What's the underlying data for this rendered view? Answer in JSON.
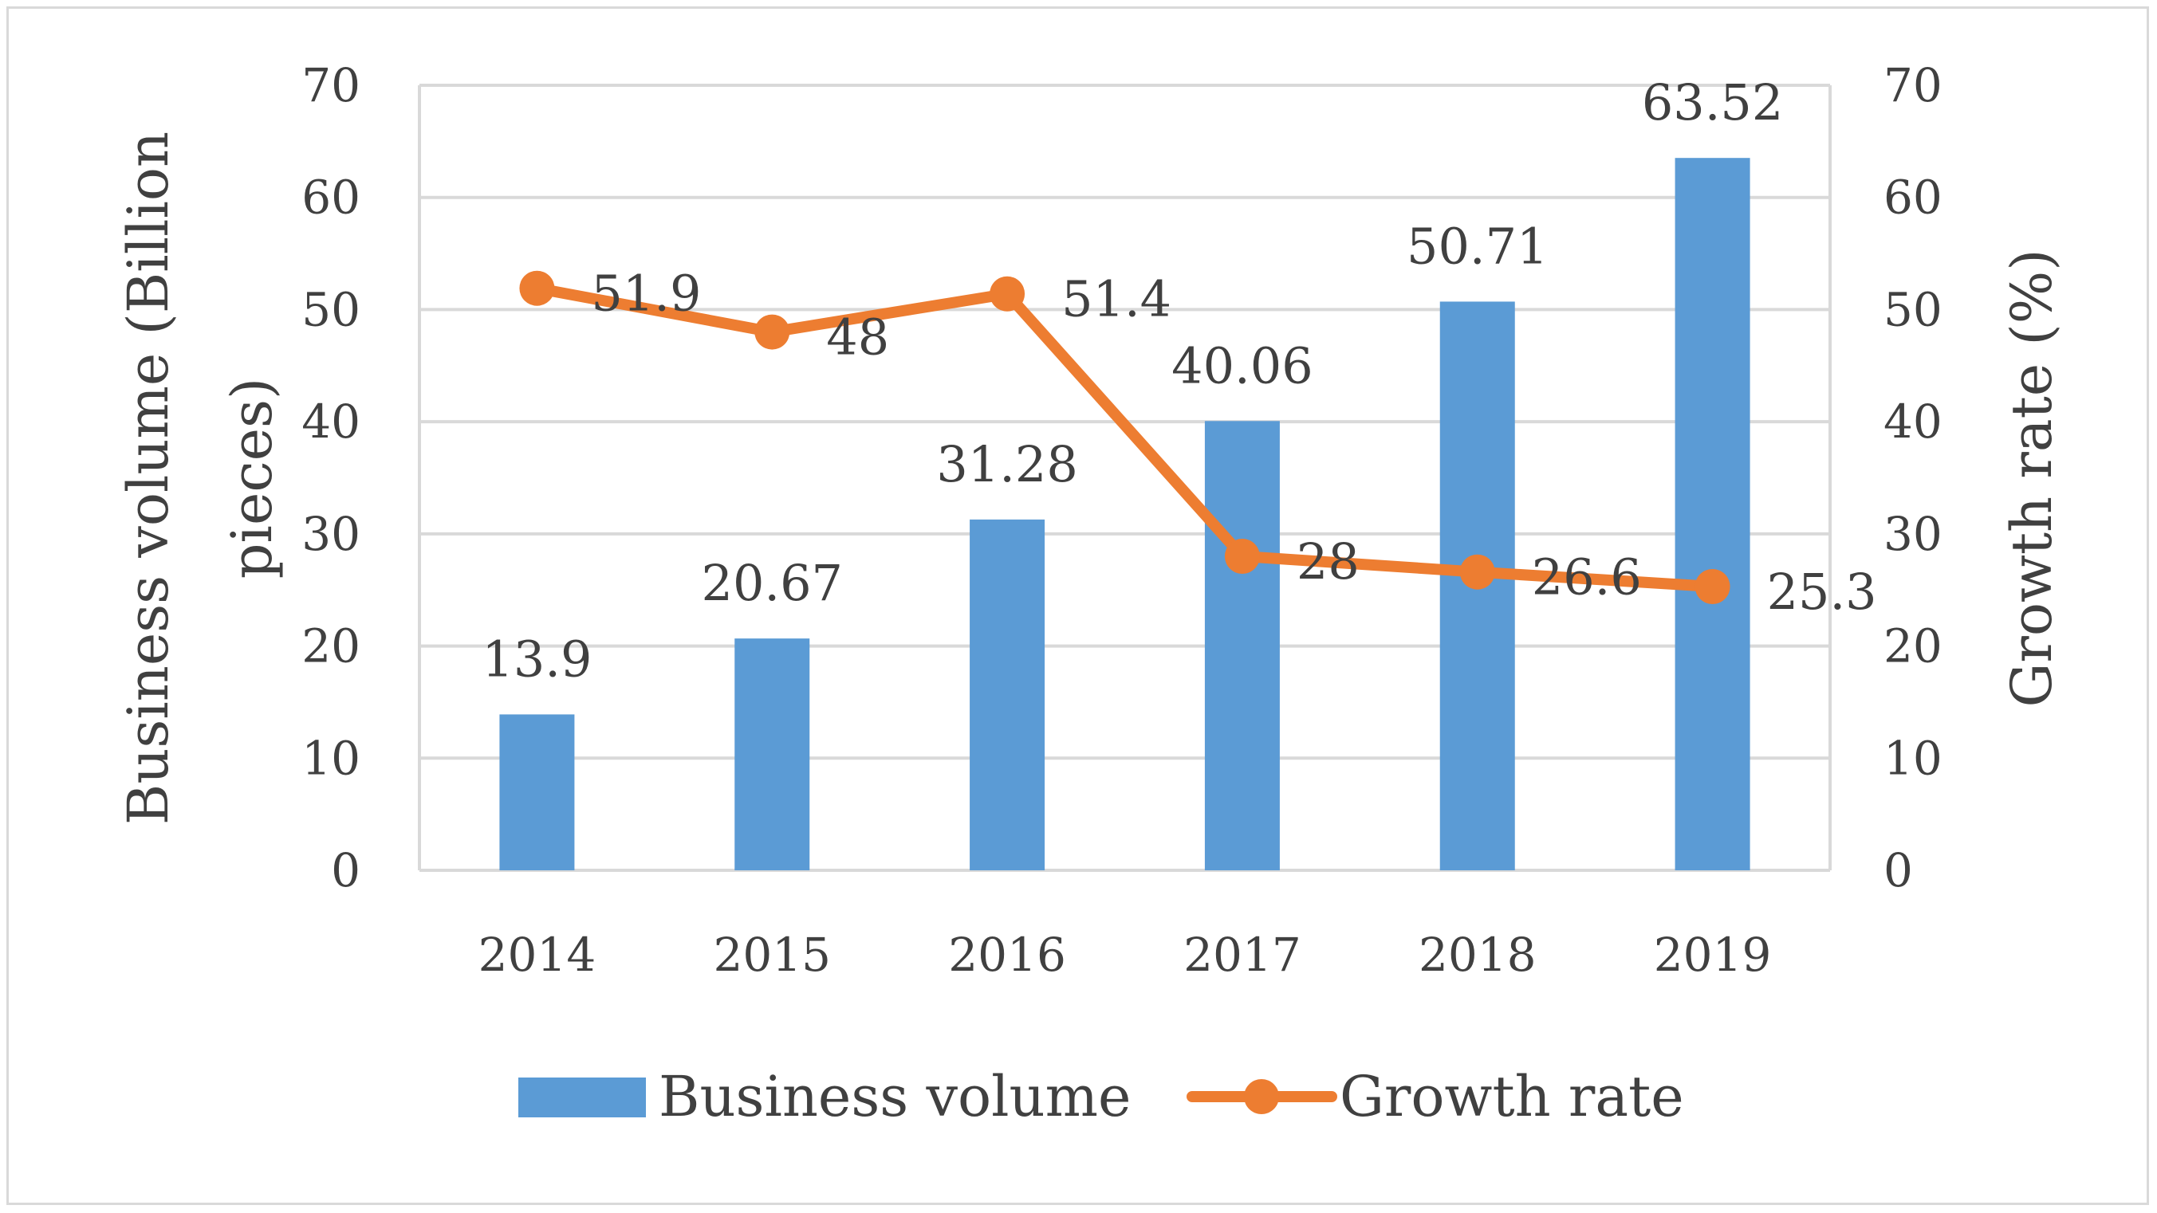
{
  "chart_data": {
    "type": "bar+line",
    "categories": [
      "2014",
      "2015",
      "2016",
      "2017",
      "2018",
      "2019"
    ],
    "series": [
      {
        "name": "Business volume",
        "type": "bar",
        "axis": "left",
        "values": [
          13.9,
          20.67,
          31.28,
          40.06,
          50.71,
          63.52
        ],
        "labels": [
          "13.9",
          "20.67",
          "31.28",
          "40.06",
          "50.71",
          "63.52"
        ],
        "color": "#5b9bd5"
      },
      {
        "name": "Growth rate",
        "type": "line",
        "axis": "right",
        "values": [
          51.9,
          48,
          51.4,
          28,
          26.6,
          25.3
        ],
        "labels": [
          "51.9",
          "48",
          "51.4",
          "28",
          "26.6",
          "25.3"
        ],
        "color": "#ed7d31"
      }
    ],
    "ylabel_left_line1": "Business volume (Billion",
    "ylabel_left_line2": "pieces)",
    "ylabel_right": "Growth rate (%)",
    "ylim_left": [
      0,
      70
    ],
    "ylim_right": [
      0,
      70
    ],
    "yticks_left": [
      "0",
      "10",
      "20",
      "30",
      "40",
      "50",
      "60",
      "70"
    ],
    "yticks_right": [
      "0",
      "10",
      "20",
      "30",
      "40",
      "50",
      "60",
      "70"
    ],
    "grid": true,
    "legend_position": "bottom",
    "gridline_color": "#d9d9d9"
  }
}
